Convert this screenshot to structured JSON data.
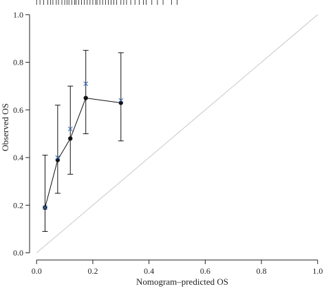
{
  "chart_data": {
    "type": "scatter",
    "xlabel": "Nomogram–predicted OS",
    "ylabel": "Observed OS",
    "xlim": [
      -0.025,
      1.02
    ],
    "ylim": [
      -0.03,
      1.05
    ],
    "x_ticks": [
      0.0,
      0.2,
      0.4,
      0.6,
      0.8,
      1.0
    ],
    "x_tick_labels": [
      "0.0",
      "0.2",
      "0.4",
      "0.6",
      "0.8",
      "1.0"
    ],
    "y_ticks": [
      0.0,
      0.2,
      0.4,
      0.6,
      0.8,
      1.0
    ],
    "y_tick_labels": [
      "0.0",
      "0.2",
      "0.4",
      "0.6",
      "0.8",
      "1.0"
    ],
    "grid": false,
    "legend": "none",
    "reference_line": {
      "from": [
        0,
        0
      ],
      "to": [
        1,
        1
      ],
      "color": "#c8c8c8"
    },
    "series": [
      {
        "marker": "filled-circle",
        "line": true,
        "color": "#111111",
        "points": [
          {
            "x": 0.03,
            "y": 0.19,
            "lower": 0.09,
            "upper": 0.41
          },
          {
            "x": 0.075,
            "y": 0.39,
            "lower": 0.25,
            "upper": 0.62
          },
          {
            "x": 0.12,
            "y": 0.48,
            "lower": 0.33,
            "upper": 0.7
          },
          {
            "x": 0.175,
            "y": 0.65,
            "lower": 0.5,
            "upper": 0.85
          },
          {
            "x": 0.3,
            "y": 0.63,
            "lower": 0.47,
            "upper": 0.84
          }
        ]
      },
      {
        "marker": "x",
        "line": false,
        "color": "#3b67b8",
        "points": [
          {
            "x": 0.03,
            "y": 0.19
          },
          {
            "x": 0.075,
            "y": 0.4
          },
          {
            "x": 0.12,
            "y": 0.52
          },
          {
            "x": 0.175,
            "y": 0.71
          },
          {
            "x": 0.3,
            "y": 0.64
          }
        ]
      }
    ],
    "rug": {
      "position": "top",
      "color": "#111111",
      "x": [
        0.0,
        0.012,
        0.025,
        0.04,
        0.05,
        0.058,
        0.07,
        0.078,
        0.09,
        0.1,
        0.108,
        0.115,
        0.125,
        0.135,
        0.14,
        0.15,
        0.16,
        0.17,
        0.18,
        0.19,
        0.2,
        0.21,
        0.215,
        0.225,
        0.235,
        0.245,
        0.255,
        0.265,
        0.275,
        0.285,
        0.3,
        0.31,
        0.32,
        0.335,
        0.35,
        0.365,
        0.38,
        0.39,
        0.41,
        0.43,
        0.45,
        0.48,
        0.5
      ]
    }
  }
}
